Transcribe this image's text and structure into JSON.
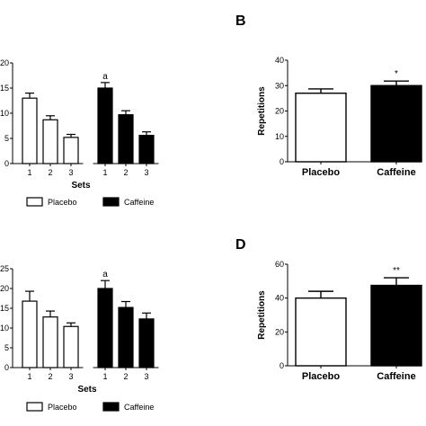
{
  "chart_data": [
    {
      "type": "bar",
      "panel": "",
      "xlabel": "Sets",
      "ylabel": "",
      "ylim": [
        0,
        20
      ],
      "yticks": [
        "0",
        "5",
        "10",
        "15",
        "20"
      ],
      "categories": [
        "1",
        "2",
        "3"
      ],
      "series": [
        {
          "name": "Placebo",
          "values": [
            13,
            8.7,
            5.2
          ],
          "errors": [
            1.0,
            0.8,
            0.6
          ]
        },
        {
          "name": "Caffeine",
          "values": [
            15,
            9.7,
            5.6
          ],
          "errors": [
            1.1,
            0.8,
            0.7
          ]
        }
      ],
      "annotations": [
        {
          "series": 1,
          "index": 0,
          "text": "a"
        }
      ],
      "legend": "bottom"
    },
    {
      "type": "bar",
      "panel": "B",
      "xlabel": "",
      "ylabel": "Repetitions",
      "ylim": [
        0,
        40
      ],
      "yticks": [
        "0",
        "10",
        "20",
        "30",
        "40"
      ],
      "categories": [
        "Placebo",
        "Caffeine"
      ],
      "series": [
        {
          "values": [
            27,
            30
          ],
          "errors": [
            1.7,
            1.8
          ]
        }
      ],
      "annotations": [
        {
          "series": 0,
          "index": 1,
          "text": "*"
        }
      ]
    },
    {
      "type": "bar",
      "panel": "",
      "xlabel": "Sets",
      "ylabel": "",
      "ylim": [
        0,
        25
      ],
      "yticks": [
        "0",
        "5",
        "10",
        "15",
        "20",
        "25"
      ],
      "categories": [
        "1",
        "2",
        "3"
      ],
      "series": [
        {
          "name": "Placebo",
          "values": [
            16.8,
            12.8,
            10.4
          ],
          "errors": [
            2.5,
            1.5,
            0.9
          ]
        },
        {
          "name": "Caffeine",
          "values": [
            20,
            15.2,
            12.3
          ],
          "errors": [
            2.0,
            1.5,
            1.5
          ]
        }
      ],
      "annotations": [
        {
          "series": 1,
          "index": 0,
          "text": "a"
        }
      ],
      "legend": "bottom"
    },
    {
      "type": "bar",
      "panel": "D",
      "xlabel": "",
      "ylabel": "Repetitions",
      "ylim": [
        0,
        60
      ],
      "yticks": [
        "0",
        "20",
        "40",
        "60"
      ],
      "categories": [
        "Placebo",
        "Caffeine"
      ],
      "series": [
        {
          "values": [
            40,
            47.5
          ],
          "errors": [
            4.0,
            4.5
          ]
        }
      ],
      "annotations": [
        {
          "series": 0,
          "index": 1,
          "text": "**"
        }
      ]
    }
  ],
  "colors": {
    "placebo_fill": "#ffffff",
    "caffeine_fill": "#000000",
    "axis": "#000000"
  }
}
